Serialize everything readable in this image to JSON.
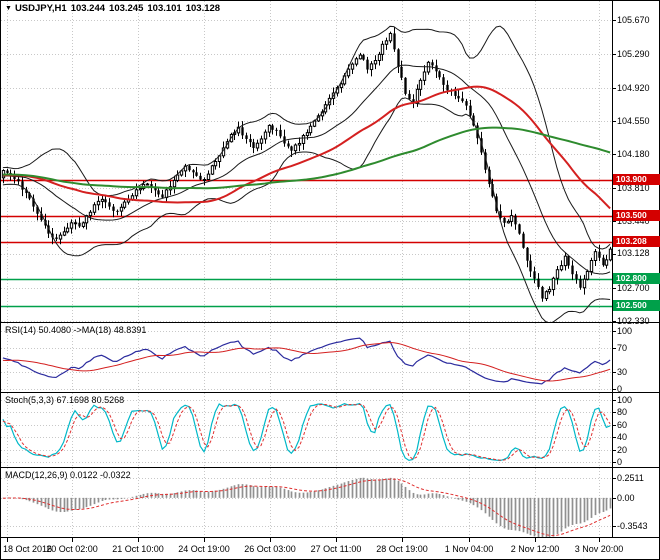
{
  "header": {
    "symbol": "USDJPY,H1",
    "open": "103.244",
    "high": "103.245",
    "low": "103.101",
    "close": "103.128"
  },
  "colors": {
    "background": "#ffffff",
    "grid": "#c8c8c8",
    "border": "#000000",
    "candle_outline": "#000000",
    "bull_fill": "#ffffff",
    "bear_fill": "#000000",
    "bollinger": "#1a1a1a",
    "ma_fast": "#d42020",
    "ma_slow": "#2e8b2e",
    "level_red": "#d40000",
    "level_green": "#00a04a",
    "rsi_line": "#2b2b9e",
    "rsi_ma": "#d42020",
    "stoch_k": "#00b8c8",
    "stoch_d": "#e03030",
    "macd_hist": "#909090",
    "macd_signal": "#e03030",
    "axis_text": "#000000"
  },
  "chart_data": {
    "type": "candlestick",
    "symbol": "USDJPY",
    "timeframe": "H1",
    "price_axis": {
      "ticks": [
        "105.670",
        "105.290",
        "104.920",
        "104.550",
        "104.180",
        "103.810",
        "103.440",
        "103.070",
        "102.700",
        "102.330"
      ],
      "min": 102.32,
      "max": 105.88
    },
    "time_axis": {
      "labels": [
        "18 Oct 2016",
        "20 Oct 02:00",
        "21 Oct 10:00",
        "24 Oct 19:00",
        "26 Oct 03:00",
        "27 Oct 11:00",
        "28 Oct 19:00",
        "1 Nov 04:00",
        "2 Nov 12:00",
        "3 Nov 20:00"
      ],
      "fracs": [
        0.012,
        0.118,
        0.226,
        0.334,
        0.442,
        0.55,
        0.658,
        0.768,
        0.876,
        0.98
      ]
    },
    "levels": [
      {
        "price": 103.9,
        "label": "103.900",
        "color": "#d40000"
      },
      {
        "price": 103.5,
        "label": "103.500",
        "color": "#d40000"
      },
      {
        "price": 103.208,
        "label": "103.208",
        "color": "#d40000"
      },
      {
        "price": 102.8,
        "label": "102.800",
        "color": "#00a04a"
      },
      {
        "price": 102.5,
        "label": "102.500",
        "color": "#00a04a"
      }
    ],
    "current_price": {
      "value": 103.128,
      "label": "103.128"
    },
    "series": {
      "warmup_bars": 60,
      "warmup_base": 103.93,
      "noise_seed": 11,
      "wick": 0.07,
      "upsample": 2,
      "close_anchors": [
        104.0,
        103.95,
        103.88,
        103.75,
        103.6,
        103.45,
        103.3,
        103.24,
        103.32,
        103.42,
        103.38,
        103.5,
        103.62,
        103.68,
        103.6,
        103.55,
        103.65,
        103.72,
        103.8,
        103.85,
        103.78,
        103.7,
        103.82,
        103.95,
        104.05,
        103.98,
        103.9,
        103.96,
        104.1,
        104.25,
        104.4,
        104.48,
        104.35,
        104.25,
        104.35,
        104.5,
        104.45,
        104.3,
        104.22,
        104.3,
        104.42,
        104.55,
        104.65,
        104.8,
        104.92,
        105.05,
        105.18,
        105.28,
        105.12,
        105.22,
        105.4,
        105.52,
        105.15,
        104.85,
        104.75,
        105.0,
        105.2,
        105.1,
        104.95,
        104.88,
        104.8,
        104.72,
        104.5,
        104.2,
        103.85,
        103.55,
        103.42,
        103.5,
        103.3,
        103.0,
        102.8,
        102.58,
        102.68,
        102.9,
        103.05,
        102.85,
        102.7,
        102.88,
        103.1,
        102.95,
        103.128
      ]
    },
    "overlays": {
      "bollinger": {
        "period": 20,
        "deviation": 2
      },
      "ma_fast_period": 48,
      "ma_slow_period": 100
    },
    "panels": {
      "rsi": {
        "label": "RSI(14) 50.4080 ->MA(18) 48.8391",
        "period": 14,
        "ma_period": 18,
        "value": 50.408,
        "ma_value": 48.8391,
        "ticks": [
          "100",
          "70",
          "30",
          "0"
        ],
        "tick_values": [
          100,
          70,
          30,
          0
        ]
      },
      "stoch": {
        "label": "Stoch(5,3,3) 67.1698 80.5268",
        "k_period": 5,
        "d_period": 3,
        "slowing": 3,
        "value": 67.1698,
        "signal_value": 80.5268,
        "ticks": [
          "100",
          "80",
          "60",
          "40",
          "20",
          "0"
        ],
        "tick_values": [
          100,
          80,
          60,
          40,
          20,
          0
        ]
      },
      "macd": {
        "label": "MACD(12,26,9) 0.0122 -0.0322",
        "fast": 12,
        "slow": 26,
        "signal": 9,
        "value": 0.0122,
        "signal_value": -0.0322,
        "ticks": [
          "0.2511",
          "0.00",
          "-0.3543"
        ],
        "tick_values": [
          0.2511,
          0,
          -0.3543
        ],
        "range": [
          -0.46,
          0.32
        ]
      }
    }
  }
}
